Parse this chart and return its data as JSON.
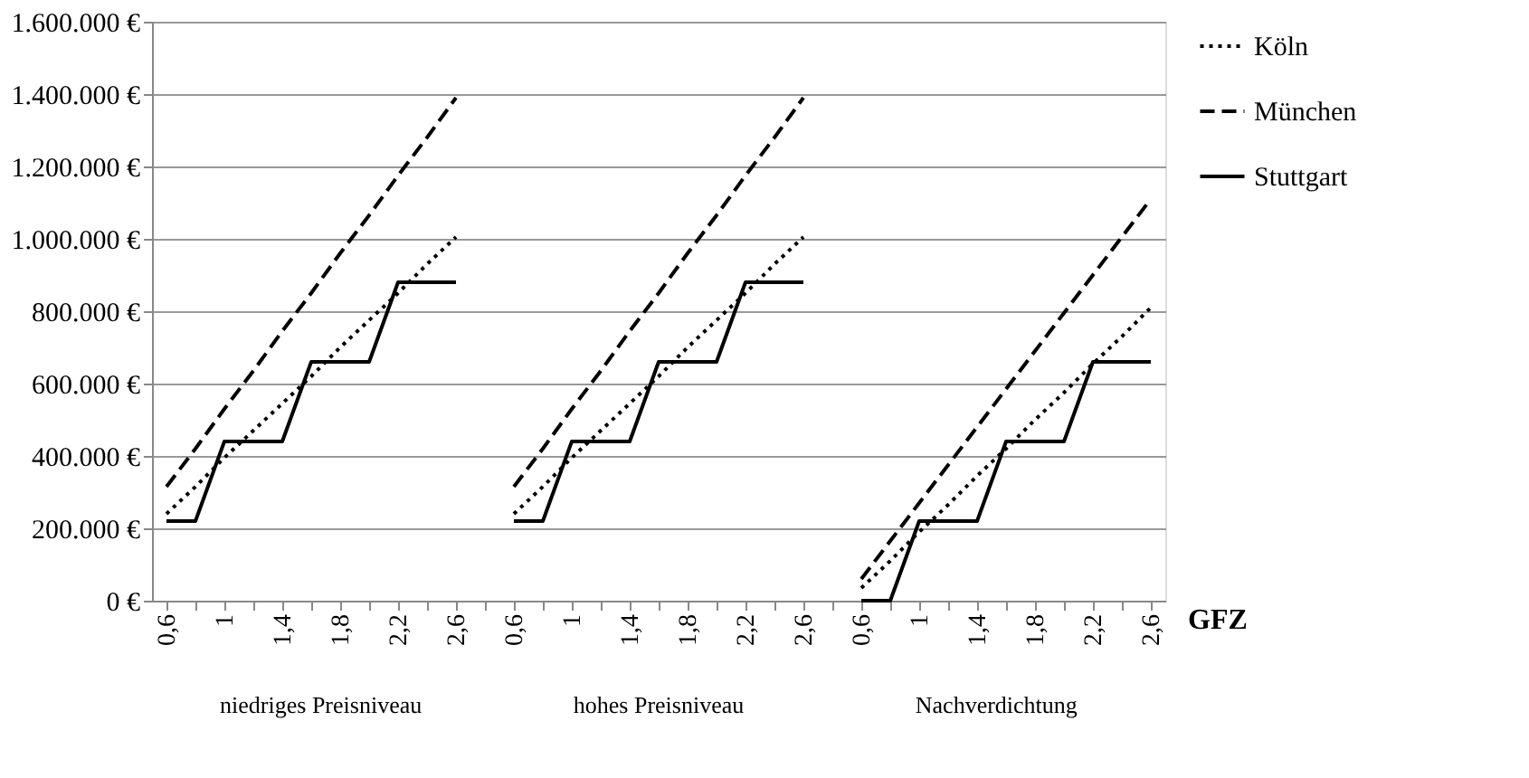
{
  "chart_data": {
    "type": "line",
    "xlabel": "GFZ",
    "categories": [
      "0,6",
      null,
      "1",
      null,
      "1,4",
      null,
      "1,8",
      null,
      "2,2",
      null,
      "2,6",
      null,
      "0,6",
      null,
      "1",
      null,
      "1,4",
      null,
      "1,8",
      null,
      "2,2",
      null,
      "2,6",
      null,
      "0,6",
      null,
      "1",
      null,
      "1,4",
      null,
      "1,8",
      null,
      "2,2",
      null,
      "2,6"
    ],
    "series": [
      {
        "name": "Köln",
        "color": "#000000",
        "line_style": "dotted",
        "values": [
          240000,
          315000,
          395000,
          470000,
          545000,
          620000,
          700000,
          775000,
          850000,
          930000,
          1005000,
          null,
          240000,
          315000,
          395000,
          470000,
          545000,
          620000,
          700000,
          775000,
          850000,
          930000,
          1005000,
          null,
          35000,
          110000,
          190000,
          265000,
          345000,
          420000,
          500000,
          575000,
          655000,
          730000,
          810000
        ]
      },
      {
        "name": "München",
        "color": "#000000",
        "line_style": "dashed",
        "values": [
          315000,
          420000,
          530000,
          635000,
          745000,
          850000,
          960000,
          1065000,
          1175000,
          1280000,
          1390000,
          null,
          315000,
          420000,
          530000,
          635000,
          745000,
          850000,
          960000,
          1065000,
          1175000,
          1280000,
          1390000,
          null,
          60000,
          165000,
          270000,
          375000,
          480000,
          585000,
          690000,
          795000,
          900000,
          1005000,
          1110000
        ]
      },
      {
        "name": "Stuttgart",
        "color": "#000000",
        "line_style": "solid",
        "values": [
          220000,
          220000,
          440000,
          440000,
          440000,
          660000,
          660000,
          660000,
          880000,
          880000,
          880000,
          null,
          220000,
          220000,
          440000,
          440000,
          440000,
          660000,
          660000,
          660000,
          880000,
          880000,
          880000,
          null,
          0,
          0,
          220000,
          220000,
          220000,
          440000,
          440000,
          440000,
          660000,
          660000,
          660000
        ]
      }
    ],
    "ylim": [
      0,
      1600000
    ],
    "yticks": [
      {
        "value": 0,
        "label": "0 €"
      },
      {
        "value": 200000,
        "label": "200.000 €"
      },
      {
        "value": 400000,
        "label": "400.000 €"
      },
      {
        "value": 600000,
        "label": "600.000 €"
      },
      {
        "value": 800000,
        "label": "800.000 €"
      },
      {
        "value": 1000000,
        "label": "1.000.000 €"
      },
      {
        "value": 1200000,
        "label": "1.200.000 €"
      },
      {
        "value": 1400000,
        "label": "1.400.000 €"
      },
      {
        "value": 1600000,
        "label": "1.600.000 €"
      }
    ],
    "grid": "y",
    "legend": "right",
    "marker": "none",
    "annotations": [
      "niedriges Preisniveau",
      "hohes Preisniveau",
      "Nachverdichtung"
    ]
  }
}
